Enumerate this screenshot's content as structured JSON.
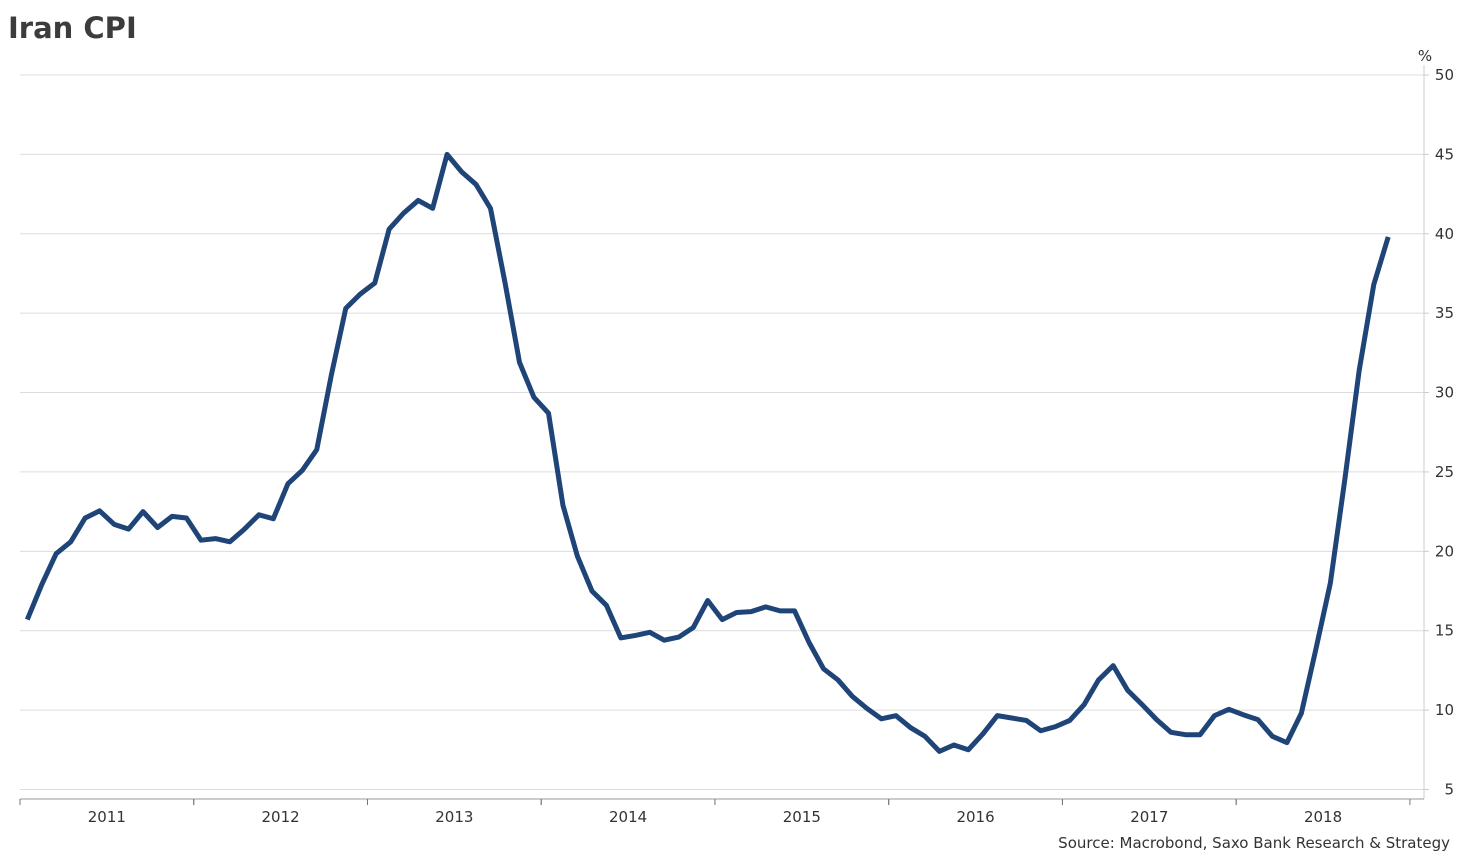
{
  "chart_data": {
    "type": "line",
    "title": "Iran CPI",
    "y_unit": "%",
    "source": "Source: Macrobond, Saxo Bank Research & Strategy",
    "x": [
      2011.042,
      2011.125,
      2011.208,
      2011.292,
      2011.375,
      2011.458,
      2011.542,
      2011.625,
      2011.708,
      2011.792,
      2011.875,
      2011.958,
      2012.042,
      2012.125,
      2012.208,
      2012.292,
      2012.375,
      2012.458,
      2012.542,
      2012.625,
      2012.708,
      2012.792,
      2012.875,
      2012.958,
      2013.042,
      2013.125,
      2013.208,
      2013.292,
      2013.375,
      2013.458,
      2013.542,
      2013.625,
      2013.708,
      2013.792,
      2013.875,
      2013.958,
      2014.042,
      2014.125,
      2014.208,
      2014.292,
      2014.375,
      2014.458,
      2014.542,
      2014.625,
      2014.708,
      2014.792,
      2014.875,
      2014.958,
      2015.042,
      2015.125,
      2015.208,
      2015.292,
      2015.375,
      2015.458,
      2015.542,
      2015.625,
      2015.708,
      2015.792,
      2015.875,
      2015.958,
      2016.042,
      2016.125,
      2016.208,
      2016.292,
      2016.375,
      2016.458,
      2016.542,
      2016.625,
      2016.708,
      2016.792,
      2016.875,
      2016.958,
      2017.042,
      2017.125,
      2017.208,
      2017.292,
      2017.375,
      2017.458,
      2017.542,
      2017.625,
      2017.708,
      2017.792,
      2017.875,
      2017.958,
      2018.042,
      2018.125,
      2018.208,
      2018.292,
      2018.375,
      2018.458,
      2018.542,
      2018.625,
      2018.708,
      2018.792,
      2018.875
    ],
    "series": [
      {
        "name": "Iran CPI",
        "color": "#1f4477",
        "values": [
          15.7,
          17.9,
          19.85,
          20.6,
          22.1,
          22.55,
          21.7,
          21.4,
          22.5,
          21.5,
          22.2,
          22.1,
          20.7,
          20.8,
          20.6,
          21.4,
          22.3,
          22.05,
          24.25,
          25.1,
          26.4,
          31.1,
          35.3,
          36.2,
          36.9,
          40.3,
          41.3,
          42.1,
          41.6,
          45.0,
          43.9,
          43.1,
          41.6,
          36.9,
          31.9,
          29.7,
          28.7,
          22.9,
          19.7,
          17.5,
          16.6,
          14.55,
          14.7,
          14.9,
          14.4,
          14.6,
          15.2,
          16.9,
          15.7,
          16.15,
          16.2,
          16.5,
          16.25,
          16.25,
          14.25,
          12.6,
          11.9,
          10.85,
          10.1,
          9.45,
          9.65,
          8.9,
          8.35,
          7.4,
          7.8,
          7.5,
          8.5,
          9.65,
          9.5,
          9.35,
          8.7,
          8.95,
          9.35,
          10.35,
          11.9,
          12.8,
          11.25,
          10.35,
          9.4,
          8.6,
          8.45,
          8.45,
          9.65,
          10.05,
          9.7,
          9.4,
          8.35,
          7.95,
          9.8,
          13.8,
          18.0,
          24.5,
          31.4,
          36.8,
          39.8
        ]
      }
    ],
    "xlim": [
      2011,
      2019.081
    ],
    "xticks": [
      {
        "value": 2011.5,
        "label": "2011"
      },
      {
        "value": 2012.5,
        "label": "2012"
      },
      {
        "value": 2013.5,
        "label": "2013"
      },
      {
        "value": 2014.5,
        "label": "2014"
      },
      {
        "value": 2015.5,
        "label": "2015"
      },
      {
        "value": 2016.5,
        "label": "2016"
      },
      {
        "value": 2017.5,
        "label": "2017"
      },
      {
        "value": 2018.5,
        "label": "2018"
      }
    ],
    "ylim": [
      4.4,
      50
    ],
    "yticks": [
      5,
      10,
      15,
      20,
      25,
      30,
      35,
      40,
      45,
      50
    ],
    "grid": true,
    "y_axis_side": "right"
  }
}
